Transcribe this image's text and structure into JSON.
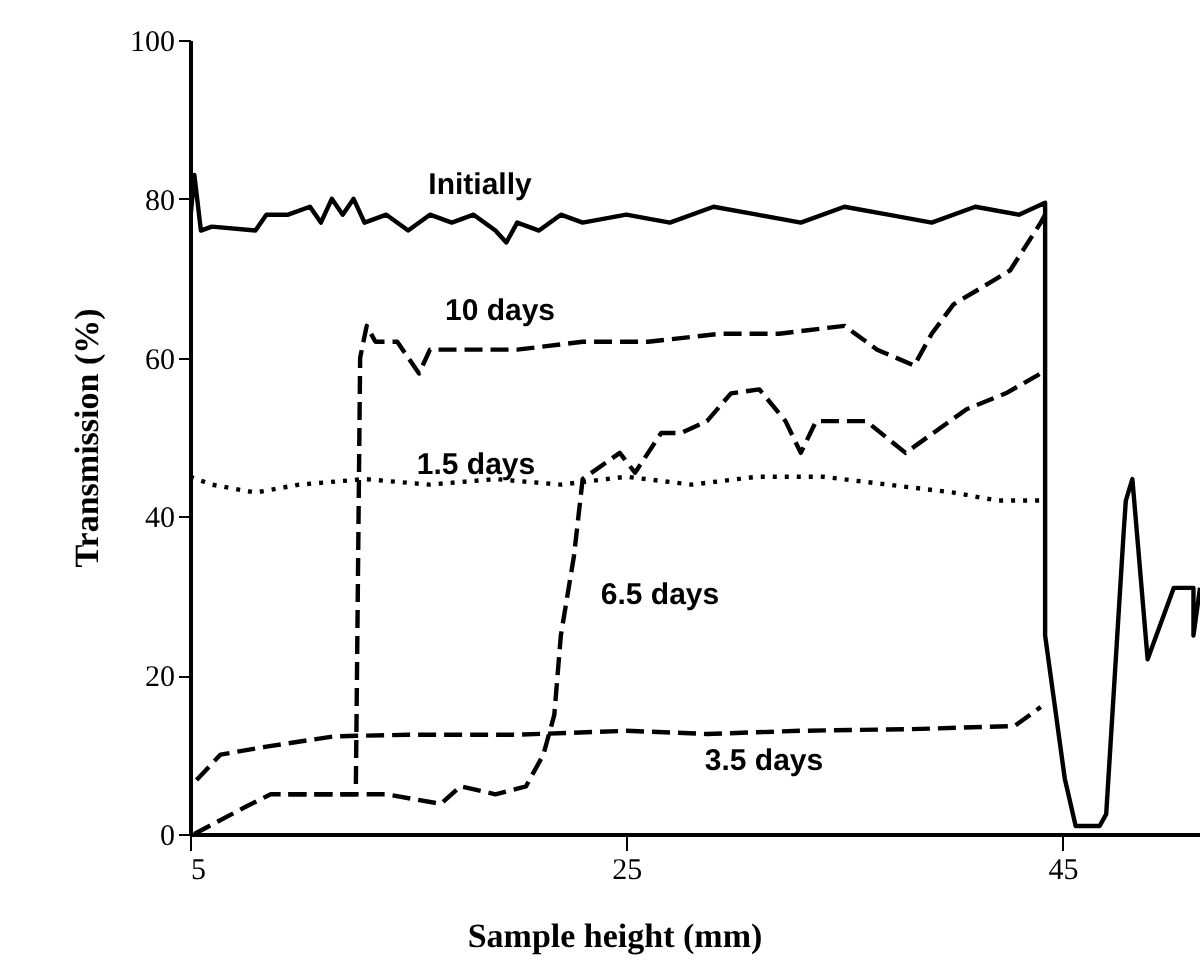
{
  "chart_data": {
    "type": "line",
    "xlabel": "Sample height (mm)",
    "ylabel": "Transmission (%)",
    "xlim": [
      5,
      51.3
    ],
    "ylim": [
      0,
      100
    ],
    "xticks": [
      5,
      25,
      45
    ],
    "yticks": [
      0,
      20,
      40,
      60,
      80,
      100
    ],
    "grid": false,
    "marker": "none",
    "series": [
      {
        "name": "Initially",
        "color": "#000000",
        "line_style": "solid",
        "x": [
          5,
          5.2,
          5.5,
          6,
          8,
          8.5,
          9.5,
          10.5,
          11,
          11.5,
          12,
          12.5,
          13,
          14,
          15,
          16,
          17,
          18,
          19,
          19.5,
          20,
          21,
          22,
          23,
          25,
          27,
          29,
          31,
          33,
          35,
          37,
          39,
          41,
          43,
          44.2,
          44.2,
          44.6,
          45.1,
          45.6,
          46.7,
          47,
          47.8,
          47.9,
          48.2,
          48.9,
          50.1,
          51,
          51,
          51.3
        ],
        "values": [
          77,
          83,
          76,
          76.5,
          76,
          78,
          78,
          79,
          77,
          80,
          78,
          80,
          77,
          78,
          76,
          78,
          77,
          78,
          76,
          74.5,
          77,
          76,
          78,
          77,
          78,
          77,
          79,
          78,
          77,
          79,
          78,
          77,
          79,
          78,
          79.5,
          25,
          17,
          7,
          1,
          1,
          2.5,
          38,
          42,
          44.7,
          22,
          31,
          31,
          25,
          31
        ]
      },
      {
        "name": "10 days",
        "color": "#000000",
        "line_style": "dashed",
        "x": [
          9.5,
          12.6,
          12.8,
          13.1,
          13.5,
          14.5,
          15.5,
          16,
          17,
          20,
          23,
          26,
          29.3,
          32,
          35,
          36.5,
          38.2,
          39,
          40,
          41.4,
          42.6,
          44,
          44.2
        ],
        "values": [
          5,
          5,
          60,
          64,
          62,
          62,
          58,
          61,
          61,
          61,
          62,
          62,
          63,
          63,
          64,
          61,
          59,
          63,
          66.7,
          69,
          71,
          77,
          78
        ]
      },
      {
        "name": "1.5 days",
        "color": "#000000",
        "line_style": "dotted",
        "x": [
          5,
          6,
          8,
          10,
          13,
          16,
          19,
          22,
          25,
          28,
          31,
          34,
          37,
          40,
          42,
          44
        ],
        "values": [
          45,
          44,
          43,
          44,
          44.7,
          44,
          44.7,
          44,
          45,
          44,
          45,
          45,
          44,
          43,
          42,
          42
        ]
      },
      {
        "name": "6.5 days",
        "color": "#000000",
        "line_style": "dashed",
        "x": [
          5.2,
          7.6,
          8.7,
          14,
          16.5,
          17.4,
          19,
          20.4,
          21.2,
          21.7,
          22,
          22.6,
          23,
          24.7,
          25.4,
          26.6,
          27.5,
          28.7,
          29.8,
          31.1,
          32.3,
          33,
          33.7,
          36,
          37.8,
          40.6,
          42.4,
          44,
          44.2
        ],
        "values": [
          0,
          3.5,
          5,
          5,
          3.8,
          6,
          5,
          6,
          10,
          15,
          25,
          35,
          44.7,
          48,
          45.5,
          50.5,
          50.5,
          52,
          55.5,
          56,
          52,
          48,
          52,
          52,
          48,
          53.5,
          55.5,
          58,
          58
        ]
      },
      {
        "name": "3.5 days",
        "color": "#000000",
        "line_style": "dashed",
        "x": [
          5.3,
          6.4,
          8.5,
          11.6,
          15,
          20,
          25,
          28.7,
          33,
          38,
          42.8,
          44
        ],
        "values": [
          6.8,
          10,
          11,
          12.3,
          12.5,
          12.5,
          13,
          12.6,
          13,
          13.2,
          13.6,
          16
        ]
      }
    ]
  }
}
